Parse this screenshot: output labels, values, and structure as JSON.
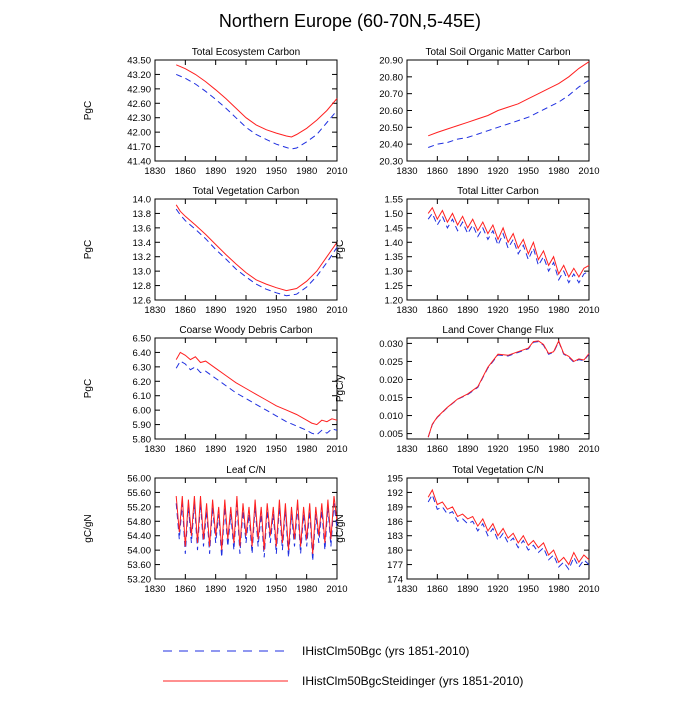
{
  "title": "Northern Europe (60-70N,5-45E)",
  "legend": [
    {
      "label": "IHistClm50Bgc (yrs 1851-2010)",
      "color": "#1f2fe0",
      "dash": true
    },
    {
      "label": "IHistClm50BgcSteidinger (yrs 1851-2010)",
      "color": "#ff2020",
      "dash": false
    }
  ],
  "chart_data": [
    {
      "type": "line",
      "title": "Total Ecosystem Carbon",
      "ylabel": "PgC",
      "xlim": [
        1830,
        2010
      ],
      "ylim": [
        41.4,
        43.5
      ],
      "xticks": [
        "1830",
        "1860",
        "1890",
        "1920",
        "1950",
        "1980",
        "2010"
      ],
      "yticks": [
        "41.40",
        "41.70",
        "42.00",
        "42.30",
        "42.60",
        "42.90",
        "43.20",
        "43.50"
      ],
      "x": [
        1851,
        1860,
        1870,
        1880,
        1890,
        1900,
        1910,
        1920,
        1930,
        1940,
        1950,
        1960,
        1965,
        1970,
        1980,
        1990,
        2000,
        2010
      ],
      "series": [
        {
          "name": "IHistClm50Bgc (yrs 1851-2010)",
          "values": [
            43.2,
            43.12,
            43.0,
            42.85,
            42.68,
            42.5,
            42.3,
            42.1,
            41.95,
            41.85,
            41.75,
            41.68,
            41.65,
            41.67,
            41.8,
            41.95,
            42.2,
            42.45
          ]
        },
        {
          "name": "IHistClm50BgcSteidinger (yrs 1851-2010)",
          "values": [
            43.4,
            43.32,
            43.2,
            43.05,
            42.88,
            42.7,
            42.5,
            42.3,
            42.15,
            42.05,
            41.98,
            41.92,
            41.9,
            41.95,
            42.08,
            42.25,
            42.45,
            42.7
          ]
        }
      ]
    },
    {
      "type": "line",
      "title": "Total Soil Organic Matter Carbon",
      "ylabel": "",
      "xlim": [
        1830,
        2010
      ],
      "ylim": [
        20.3,
        20.9
      ],
      "xticks": [
        "1830",
        "1860",
        "1890",
        "1920",
        "1950",
        "1980",
        "2010"
      ],
      "yticks": [
        "20.30",
        "20.40",
        "20.50",
        "20.60",
        "20.70",
        "20.80",
        "20.90"
      ],
      "x": [
        1851,
        1860,
        1870,
        1880,
        1890,
        1900,
        1910,
        1920,
        1930,
        1940,
        1950,
        1960,
        1970,
        1980,
        1990,
        2000,
        2010
      ],
      "series": [
        {
          "name": "IHistClm50Bgc (yrs 1851-2010)",
          "values": [
            20.38,
            20.4,
            20.41,
            20.43,
            20.44,
            20.46,
            20.48,
            20.5,
            20.52,
            20.54,
            20.56,
            20.59,
            20.62,
            20.65,
            20.69,
            20.74,
            20.78
          ]
        },
        {
          "name": "IHistClm50BgcSteidinger (yrs 1851-2010)",
          "values": [
            20.45,
            20.47,
            20.49,
            20.51,
            20.53,
            20.55,
            20.57,
            20.6,
            20.62,
            20.64,
            20.67,
            20.7,
            20.73,
            20.76,
            20.8,
            20.85,
            20.89
          ]
        }
      ]
    },
    {
      "type": "line",
      "title": "Total Vegetation Carbon",
      "ylabel": "PgC",
      "xlim": [
        1830,
        2010
      ],
      "ylim": [
        12.6,
        14.0
      ],
      "xticks": [
        "1830",
        "1860",
        "1890",
        "1920",
        "1950",
        "1980",
        "2010"
      ],
      "yticks": [
        "12.6",
        "12.8",
        "13.0",
        "13.2",
        "13.4",
        "13.6",
        "13.8",
        "14.0"
      ],
      "x": [
        1851,
        1855,
        1860,
        1870,
        1880,
        1890,
        1900,
        1910,
        1920,
        1930,
        1940,
        1950,
        1960,
        1970,
        1980,
        1990,
        2000,
        2010
      ],
      "series": [
        {
          "name": "IHistClm50Bgc (yrs 1851-2010)",
          "values": [
            13.86,
            13.78,
            13.7,
            13.58,
            13.45,
            13.3,
            13.17,
            13.03,
            12.92,
            12.82,
            12.75,
            12.7,
            12.66,
            12.68,
            12.78,
            12.93,
            13.12,
            13.33
          ]
        },
        {
          "name": "IHistClm50BgcSteidinger (yrs 1851-2010)",
          "values": [
            13.92,
            13.83,
            13.76,
            13.64,
            13.51,
            13.37,
            13.23,
            13.1,
            12.98,
            12.88,
            12.82,
            12.77,
            12.73,
            12.76,
            12.86,
            13.0,
            13.2,
            13.4
          ]
        }
      ]
    },
    {
      "type": "line",
      "title": "Total Litter Carbon",
      "ylabel": "PgC",
      "xlim": [
        1830,
        2010
      ],
      "ylim": [
        1.2,
        1.55
      ],
      "xticks": [
        "1830",
        "1860",
        "1890",
        "1920",
        "1950",
        "1980",
        "2010"
      ],
      "yticks": [
        "1.20",
        "1.25",
        "1.30",
        "1.35",
        "1.40",
        "1.45",
        "1.50",
        "1.55"
      ],
      "x": [
        1851,
        1855,
        1860,
        1865,
        1870,
        1875,
        1880,
        1885,
        1890,
        1895,
        1900,
        1905,
        1910,
        1915,
        1920,
        1925,
        1930,
        1935,
        1940,
        1945,
        1950,
        1955,
        1960,
        1965,
        1970,
        1975,
        1980,
        1985,
        1990,
        1995,
        2000,
        2005,
        2010
      ],
      "series": [
        {
          "name": "IHistClm50Bgc (yrs 1851-2010)",
          "values": [
            1.48,
            1.5,
            1.46,
            1.49,
            1.45,
            1.48,
            1.44,
            1.47,
            1.43,
            1.46,
            1.42,
            1.45,
            1.41,
            1.44,
            1.39,
            1.43,
            1.38,
            1.41,
            1.36,
            1.39,
            1.34,
            1.38,
            1.32,
            1.35,
            1.3,
            1.33,
            1.27,
            1.3,
            1.26,
            1.29,
            1.26,
            1.29,
            1.3
          ]
        },
        {
          "name": "IHistClm50BgcSteidinger (yrs 1851-2010)",
          "values": [
            1.5,
            1.52,
            1.48,
            1.51,
            1.47,
            1.5,
            1.46,
            1.49,
            1.45,
            1.48,
            1.44,
            1.47,
            1.43,
            1.46,
            1.41,
            1.45,
            1.4,
            1.43,
            1.38,
            1.41,
            1.36,
            1.4,
            1.34,
            1.37,
            1.32,
            1.35,
            1.29,
            1.32,
            1.28,
            1.31,
            1.28,
            1.31,
            1.32
          ]
        }
      ]
    },
    {
      "type": "line",
      "title": "Coarse Woody Debris Carbon",
      "ylabel": "PgC",
      "xlim": [
        1830,
        2010
      ],
      "ylim": [
        5.8,
        6.5
      ],
      "xticks": [
        "1830",
        "1860",
        "1890",
        "1920",
        "1950",
        "1980",
        "2010"
      ],
      "yticks": [
        "5.80",
        "5.90",
        "6.00",
        "6.10",
        "6.20",
        "6.30",
        "6.40",
        "6.50"
      ],
      "x": [
        1851,
        1855,
        1860,
        1865,
        1870,
        1875,
        1880,
        1890,
        1900,
        1910,
        1920,
        1930,
        1940,
        1950,
        1960,
        1970,
        1980,
        1985,
        1990,
        1995,
        2000,
        2005,
        2010
      ],
      "series": [
        {
          "name": "IHistClm50Bgc (yrs 1851-2010)",
          "values": [
            6.29,
            6.34,
            6.32,
            6.28,
            6.3,
            6.26,
            6.27,
            6.22,
            6.17,
            6.12,
            6.08,
            6.04,
            6.0,
            5.96,
            5.92,
            5.89,
            5.86,
            5.84,
            5.83,
            5.86,
            5.84,
            5.87,
            5.86
          ]
        },
        {
          "name": "IHistClm50BgcSteidinger (yrs 1851-2010)",
          "values": [
            6.35,
            6.4,
            6.38,
            6.35,
            6.37,
            6.33,
            6.34,
            6.29,
            6.24,
            6.19,
            6.15,
            6.11,
            6.07,
            6.03,
            6.0,
            5.97,
            5.93,
            5.91,
            5.9,
            5.93,
            5.92,
            5.94,
            5.93
          ]
        }
      ]
    },
    {
      "type": "line",
      "title": "Land Cover Change Flux",
      "ylabel": "PgC/y",
      "xlim": [
        1830,
        2010
      ],
      "ylim": [
        0.0035,
        0.0315
      ],
      "xticks": [
        "1830",
        "1860",
        "1890",
        "1920",
        "1950",
        "1980",
        "2010"
      ],
      "yticks": [
        "0.005",
        "0.010",
        "0.015",
        "0.020",
        "0.025",
        "0.030"
      ],
      "x": [
        1851,
        1855,
        1860,
        1870,
        1880,
        1890,
        1900,
        1905,
        1910,
        1920,
        1930,
        1940,
        1950,
        1955,
        1960,
        1965,
        1970,
        1975,
        1980,
        1985,
        1990,
        1995,
        2000,
        2005,
        2010
      ],
      "series": [
        {
          "name": "IHistClm50Bgc (yrs 1851-2010)",
          "values": [
            0.004,
            0.0075,
            0.0095,
            0.0122,
            0.0145,
            0.0158,
            0.0178,
            0.0205,
            0.0232,
            0.0268,
            0.0265,
            0.0275,
            0.0285,
            0.0303,
            0.0305,
            0.0295,
            0.027,
            0.0275,
            0.0305,
            0.027,
            0.0262,
            0.0248,
            0.0255,
            0.0252,
            0.027
          ]
        },
        {
          "name": "IHistClm50BgcSteidinger (yrs 1851-2010)",
          "values": [
            0.004,
            0.0076,
            0.0096,
            0.0123,
            0.0146,
            0.016,
            0.018,
            0.0207,
            0.0234,
            0.027,
            0.0267,
            0.0277,
            0.0287,
            0.0305,
            0.0307,
            0.0297,
            0.0272,
            0.0277,
            0.0307,
            0.0272,
            0.0264,
            0.025,
            0.0257,
            0.0254,
            0.0272
          ]
        }
      ]
    },
    {
      "type": "line",
      "title": "Leaf C/N",
      "ylabel": "gC/gN",
      "xlim": [
        1830,
        2010
      ],
      "ylim": [
        53.2,
        56.0
      ],
      "xticks": [
        "1830",
        "1860",
        "1890",
        "1920",
        "1950",
        "1980",
        "2010"
      ],
      "yticks": [
        "53.20",
        "53.60",
        "54.00",
        "54.40",
        "54.80",
        "55.20",
        "55.60",
        "56.00"
      ],
      "x": [
        1851,
        1854,
        1857,
        1860,
        1863,
        1866,
        1869,
        1872,
        1875,
        1878,
        1881,
        1884,
        1887,
        1890,
        1893,
        1896,
        1899,
        1902,
        1905,
        1908,
        1911,
        1914,
        1917,
        1920,
        1923,
        1926,
        1929,
        1932,
        1935,
        1938,
        1941,
        1944,
        1947,
        1950,
        1953,
        1956,
        1959,
        1962,
        1965,
        1968,
        1971,
        1974,
        1977,
        1980,
        1983,
        1986,
        1989,
        1992,
        1995,
        1998,
        2001,
        2004,
        2007,
        2010
      ],
      "series": [
        {
          "name": "IHistClm50Bgc (yrs 1851-2010)",
          "values": [
            55.3,
            54.3,
            55.3,
            53.9,
            55.2,
            54.2,
            55.3,
            54.0,
            55.3,
            54.1,
            55.1,
            53.9,
            55.2,
            54.2,
            55.0,
            53.8,
            55.2,
            54.1,
            55.0,
            54.0,
            55.3,
            53.9,
            55.1,
            54.2,
            55.0,
            53.9,
            55.2,
            54.1,
            55.0,
            53.8,
            55.1,
            54.2,
            55.0,
            53.9,
            55.2,
            54.0,
            55.1,
            53.8,
            55.0,
            54.1,
            55.2,
            53.9,
            55.0,
            54.1,
            55.1,
            53.7,
            55.0,
            54.2,
            55.1,
            54.0,
            55.2,
            54.1,
            55.3,
            54.6
          ]
        },
        {
          "name": "IHistClm50BgcSteidinger (yrs 1851-2010)",
          "values": [
            55.5,
            54.5,
            55.5,
            54.1,
            55.4,
            54.4,
            55.5,
            54.2,
            55.5,
            54.3,
            55.3,
            54.1,
            55.4,
            54.4,
            55.2,
            54.0,
            55.4,
            54.3,
            55.2,
            54.2,
            55.5,
            54.1,
            55.3,
            54.4,
            55.2,
            54.1,
            55.4,
            54.3,
            55.2,
            54.0,
            55.3,
            54.4,
            55.2,
            54.1,
            55.4,
            54.2,
            55.3,
            54.0,
            55.2,
            54.3,
            55.4,
            54.1,
            55.2,
            54.3,
            55.3,
            53.9,
            55.2,
            54.4,
            55.3,
            54.2,
            55.4,
            54.3,
            55.5,
            54.8
          ]
        }
      ]
    },
    {
      "type": "line",
      "title": "Total Vegetation C/N",
      "ylabel": "gC/gN",
      "xlim": [
        1830,
        2010
      ],
      "ylim": [
        174,
        195
      ],
      "xticks": [
        "1830",
        "1860",
        "1890",
        "1920",
        "1950",
        "1980",
        "2010"
      ],
      "yticks": [
        "174",
        "177",
        "180",
        "183",
        "186",
        "189",
        "192",
        "195"
      ],
      "x": [
        1851,
        1855,
        1860,
        1865,
        1870,
        1875,
        1880,
        1885,
        1890,
        1895,
        1900,
        1905,
        1910,
        1915,
        1920,
        1925,
        1930,
        1935,
        1940,
        1945,
        1950,
        1955,
        1960,
        1965,
        1970,
        1975,
        1980,
        1985,
        1990,
        1995,
        2000,
        2005,
        2010
      ],
      "series": [
        {
          "name": "IHistClm50Bgc (yrs 1851-2010)",
          "values": [
            190.0,
            191.5,
            188.5,
            189.0,
            187.5,
            188.0,
            186.0,
            186.5,
            185.5,
            186.0,
            184.0,
            185.5,
            183.0,
            184.5,
            182.0,
            183.5,
            181.5,
            182.5,
            180.5,
            182.0,
            180.0,
            181.0,
            179.5,
            180.5,
            178.0,
            179.0,
            176.5,
            177.5,
            176.0,
            178.5,
            176.5,
            178.0,
            177.0
          ]
        },
        {
          "name": "IHistClm50BgcSteidinger (yrs 1851-2010)",
          "values": [
            191.0,
            192.5,
            189.5,
            190.0,
            188.5,
            189.0,
            187.0,
            187.5,
            186.5,
            187.0,
            185.0,
            186.5,
            184.0,
            185.5,
            183.0,
            184.5,
            182.5,
            183.5,
            181.5,
            183.0,
            181.0,
            182.0,
            180.5,
            181.5,
            179.0,
            180.0,
            177.5,
            178.5,
            177.0,
            179.5,
            177.5,
            179.0,
            178.0
          ]
        }
      ]
    }
  ]
}
